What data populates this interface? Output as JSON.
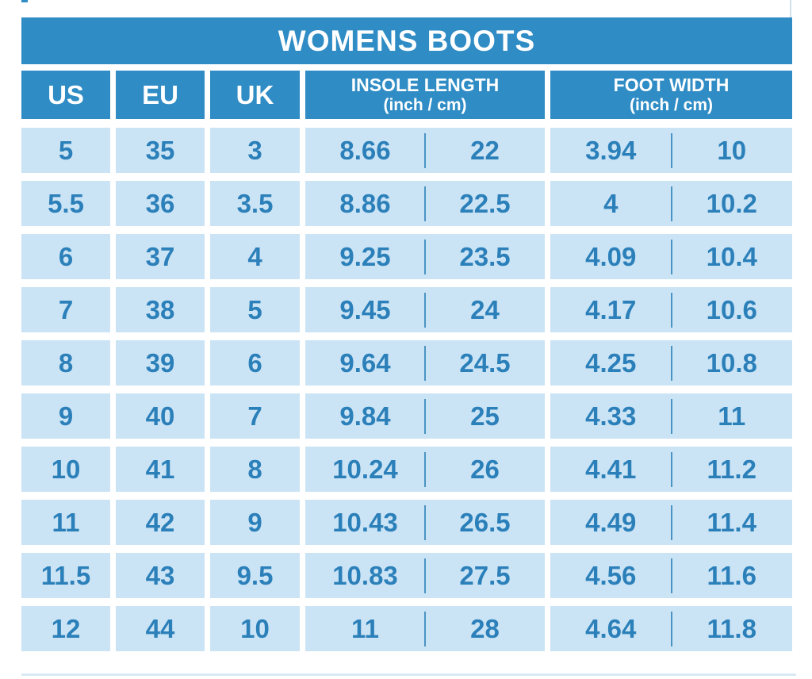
{
  "header": {
    "title": "WOMENS BOOTS"
  },
  "columns": {
    "us": "US",
    "eu": "EU",
    "uk": "UK",
    "insole": {
      "label": "INSOLE LENGTH",
      "sub": "(inch / cm)"
    },
    "foot": {
      "label": "FOOT WIDTH",
      "sub": "(inch / cm)"
    }
  },
  "chart_data": {
    "type": "table",
    "title": "WOMENS BOOTS",
    "columns": [
      "US",
      "EU",
      "UK",
      "INSOLE LENGTH inch",
      "INSOLE LENGTH cm",
      "FOOT WIDTH inch",
      "FOOT WIDTH cm"
    ],
    "rows": [
      [
        "5",
        "35",
        "3",
        "8.66",
        "22",
        "3.94",
        "10"
      ],
      [
        "5.5",
        "36",
        "3.5",
        "8.86",
        "22.5",
        "4",
        "10.2"
      ],
      [
        "6",
        "37",
        "4",
        "9.25",
        "23.5",
        "4.09",
        "10.4"
      ],
      [
        "7",
        "38",
        "5",
        "9.45",
        "24",
        "4.17",
        "10.6"
      ],
      [
        "8",
        "39",
        "6",
        "9.64",
        "24.5",
        "4.25",
        "10.8"
      ],
      [
        "9",
        "40",
        "7",
        "9.84",
        "25",
        "4.33",
        "11"
      ],
      [
        "10",
        "41",
        "8",
        "10.24",
        "26",
        "4.41",
        "11.2"
      ],
      [
        "11",
        "42",
        "9",
        "10.43",
        "26.5",
        "4.49",
        "11.4"
      ],
      [
        "11.5",
        "43",
        "9.5",
        "10.83",
        "27.5",
        "4.56",
        "11.6"
      ],
      [
        "12",
        "44",
        "10",
        "11",
        "28",
        "4.64",
        "11.8"
      ]
    ]
  },
  "colors": {
    "header_blue": "#2F8CC5",
    "cell_blue": "#CBE4F5",
    "text_blue": "#2C80BA",
    "divider_blue": "#4A94C4",
    "background": "#FFFFFF",
    "artifact_side_line": "#CFE0EA",
    "artifact_bottom_line": "#D8E9F5"
  }
}
